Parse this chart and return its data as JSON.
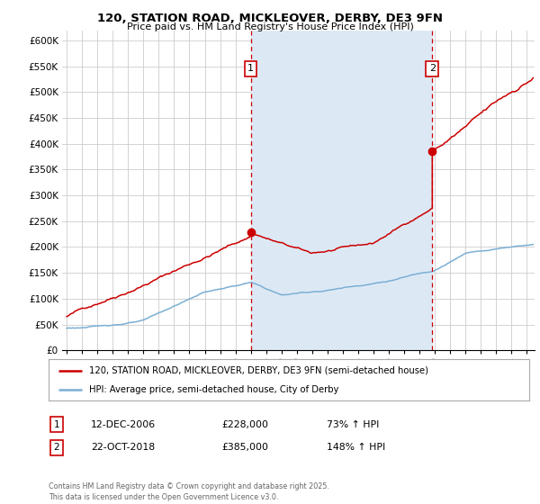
{
  "title1": "120, STATION ROAD, MICKLEOVER, DERBY, DE3 9FN",
  "title2": "Price paid vs. HM Land Registry's House Price Index (HPI)",
  "red_color": "#cc0000",
  "blue_color": "#7bafd4",
  "blue_fill_color": "#dce9f5",
  "ylim": [
    0,
    620000
  ],
  "ylabel_values": [
    0,
    50000,
    100000,
    150000,
    200000,
    250000,
    300000,
    350000,
    400000,
    450000,
    500000,
    550000,
    600000
  ],
  "legend_red": "120, STATION ROAD, MICKLEOVER, DERBY, DE3 9FN (semi-detached house)",
  "legend_blue": "HPI: Average price, semi-detached house, City of Derby",
  "footer": "Contains HM Land Registry data © Crown copyright and database right 2025.\nThis data is licensed under the Open Government Licence v3.0.",
  "vline1_x": 2007.0,
  "vline2_x": 2018.83,
  "marker1_x": 2007.0,
  "marker1_y": 228000,
  "marker2_x": 2018.83,
  "marker2_y": 385000,
  "ann1_date": "12-DEC-2006",
  "ann1_price": "£228,000",
  "ann1_hpi": "73% ↑ HPI",
  "ann2_date": "22-OCT-2018",
  "ann2_price": "£385,000",
  "ann2_hpi": "148% ↑ HPI",
  "background_color": "#ffffff",
  "grid_color": "#cccccc",
  "xlim_left": 1994.7,
  "xlim_right": 2025.5,
  "xticks": [
    1995,
    1996,
    1997,
    1998,
    1999,
    2000,
    2001,
    2002,
    2003,
    2004,
    2005,
    2006,
    2007,
    2008,
    2009,
    2010,
    2011,
    2012,
    2013,
    2014,
    2015,
    2016,
    2017,
    2018,
    2019,
    2020,
    2021,
    2022,
    2023,
    2024,
    2025
  ]
}
